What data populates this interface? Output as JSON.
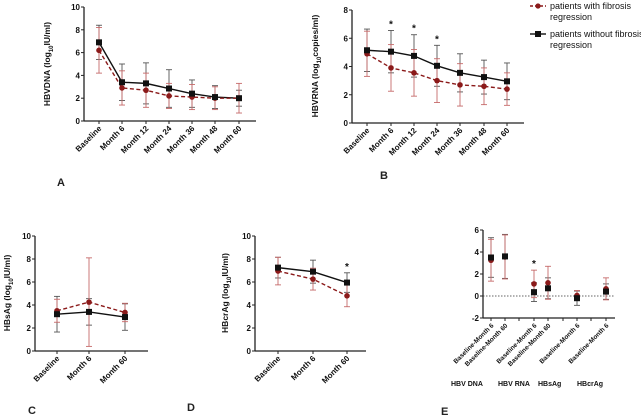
{
  "colors": {
    "with_fibrosis": "#8b1a1a",
    "with_fibrosis_err": "#c66a6a",
    "without_fibrosis": "#111111",
    "without_fibrosis_err": "#555555"
  },
  "legend": {
    "entries": [
      "patients with fibrosis regression",
      "patients without fibrosis regression"
    ],
    "lines": [
      [
        "patients with fibrosis",
        "regression"
      ],
      [
        "patients without fibrosis",
        "regression"
      ]
    ]
  },
  "chart_data": [
    {
      "panel": "A",
      "type": "line",
      "ylabel": "HBVDNA (log10IU/ml)",
      "ylabel_main": "HBVDNA (log",
      "ylabel_sub": "10",
      "ylabel_tail": "IU/ml)",
      "ylim": [
        0,
        10
      ],
      "yticks": [
        0,
        2,
        4,
        6,
        8,
        10
      ],
      "categories": [
        "Baseline",
        "Month 6",
        "Month 12",
        "Month 24",
        "Month 36",
        "Month 48",
        "Month 60"
      ],
      "series": [
        {
          "name": "patients with fibrosis regression",
          "values": [
            6.2,
            2.9,
            2.7,
            2.2,
            2.1,
            2.0,
            2.0
          ],
          "err": [
            2.0,
            1.5,
            1.5,
            1.1,
            1.1,
            1.0,
            1.3
          ]
        },
        {
          "name": "patients without fibrosis regression",
          "values": [
            6.9,
            3.4,
            3.3,
            2.85,
            2.4,
            2.1,
            2.0
          ],
          "err": [
            1.5,
            1.6,
            1.8,
            1.65,
            1.2,
            1.0,
            0.7
          ]
        }
      ],
      "significance": []
    },
    {
      "panel": "B",
      "type": "line",
      "ylabel": "HBVRNA (log10copies/ml)",
      "ylabel_main": "HBVRNA (log",
      "ylabel_sub": "10",
      "ylabel_tail": "copies/ml)",
      "ylim": [
        0,
        8
      ],
      "yticks": [
        0,
        2,
        4,
        6,
        8
      ],
      "categories": [
        "Baseline",
        "Month 6",
        "Month 12",
        "Month 24",
        "Month 36",
        "Month 48",
        "Month 60"
      ],
      "series": [
        {
          "name": "patients with fibrosis regression",
          "values": [
            4.9,
            3.9,
            3.55,
            3.0,
            2.7,
            2.6,
            2.4
          ],
          "err": [
            1.6,
            1.65,
            1.65,
            1.55,
            1.5,
            1.3,
            1.15
          ]
        },
        {
          "name": "patients without fibrosis regression",
          "values": [
            5.15,
            5.05,
            4.75,
            4.05,
            3.55,
            3.25,
            2.95
          ],
          "err": [
            1.5,
            1.5,
            1.5,
            1.45,
            1.35,
            1.2,
            1.3
          ]
        }
      ],
      "significance": [
        1,
        2,
        3
      ]
    },
    {
      "panel": "C",
      "type": "line",
      "ylabel": "HBsAg (log10IU/ml)",
      "ylabel_main": "HBsAg (log",
      "ylabel_sub": "10",
      "ylabel_tail": "IU/ml)",
      "ylim": [
        0,
        10
      ],
      "yticks": [
        0,
        2,
        4,
        6,
        8,
        10
      ],
      "categories": [
        "Baseline",
        "Month 6",
        "Month 60"
      ],
      "series": [
        {
          "name": "patients with fibrosis regression",
          "values": [
            3.5,
            4.25,
            3.35
          ],
          "err": [
            1.0,
            3.85,
            0.8
          ]
        },
        {
          "name": "patients without fibrosis regression",
          "values": [
            3.2,
            3.4,
            2.95
          ],
          "err": [
            1.55,
            1.15,
            1.15
          ]
        }
      ],
      "significance": []
    },
    {
      "panel": "D",
      "type": "line",
      "ylabel": "HBcrAg (log10IU/ml)",
      "ylabel_main": "HBcrAg (log",
      "ylabel_sub": "10",
      "ylabel_tail": "IU/ml)",
      "ylim": [
        0,
        10
      ],
      "yticks": [
        0,
        2,
        4,
        6,
        8,
        10
      ],
      "categories": [
        "Baseline",
        "Month 6",
        "Month 60"
      ],
      "series": [
        {
          "name": "patients with fibrosis regression",
          "values": [
            6.95,
            6.25,
            4.8
          ],
          "err": [
            1.2,
            0.95,
            0.95
          ]
        },
        {
          "name": "patients without fibrosis regression",
          "values": [
            7.25,
            6.9,
            5.95
          ],
          "err": [
            0.9,
            1.0,
            0.85
          ]
        }
      ],
      "significance": [
        2
      ]
    },
    {
      "panel": "E",
      "type": "scatter",
      "ylim": [
        -2,
        6
      ],
      "yticks": [
        -2,
        0,
        2,
        4,
        6
      ],
      "slots": 9,
      "categories": [
        "Baseline-Month 6",
        "Baseline-Month 60",
        "Baseline-Month 6",
        "Baseline-Month 60",
        "Baseline-Month 6",
        "Baseline-Month 6"
      ],
      "slot_index": [
        0,
        1,
        3,
        4,
        6,
        8
      ],
      "groups": [
        "HBV DNA",
        "HBV RNA",
        "HBsAg",
        "HBcrAg"
      ],
      "series": [
        {
          "name": "patients with fibrosis regression",
          "values": [
            3.25,
            3.55,
            1.1,
            1.2,
            0.05,
            0.65
          ],
          "err": [
            1.9,
            2.0,
            1.25,
            1.5,
            0.45,
            1.0
          ]
        },
        {
          "name": "patients without fibrosis regression",
          "values": [
            3.5,
            3.6,
            0.35,
            0.7,
            -0.2,
            0.4
          ],
          "err": [
            1.8,
            2.0,
            0.85,
            0.95,
            0.65,
            0.7
          ]
        }
      ],
      "reference_line": 0,
      "significance": [
        2
      ]
    }
  ],
  "panel_labels": [
    "A",
    "B",
    "C",
    "D",
    "E"
  ]
}
